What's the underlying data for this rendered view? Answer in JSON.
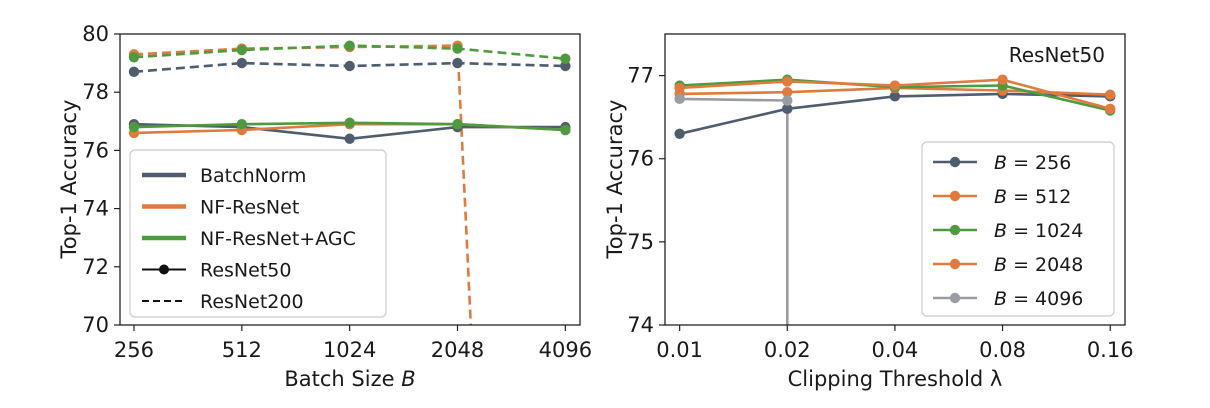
{
  "colors": {
    "batchnorm": "#4f5d6e",
    "nf_resnet": "#e07a3f",
    "nf_resnet_agc": "#4e9a3f",
    "b256": "#4f5d6e",
    "b512": "#e07a3f",
    "b1024": "#4e9a3f",
    "b2048": "#e07a3f",
    "b4096": "#9a9ca3"
  },
  "chart_data": [
    {
      "type": "line",
      "title": "",
      "xlabel": "Batch Size B",
      "ylabel": "Top-1 Accuracy",
      "x_scale": "log2",
      "categories": [
        "256",
        "512",
        "1024",
        "2048",
        "4096"
      ],
      "x": [
        256,
        512,
        1024,
        2048,
        4096
      ],
      "xlim": [
        234,
        4500
      ],
      "ylim": [
        70,
        80
      ],
      "yticks": [
        "70",
        "72",
        "74",
        "76",
        "78",
        "80"
      ],
      "yticks_values": [
        70,
        72,
        74,
        76,
        78,
        80
      ],
      "grid": false,
      "legend_position": "lower-left",
      "legend": [
        {
          "label": "BatchNorm",
          "style": "line",
          "color": "batchnorm"
        },
        {
          "label": "NF-ResNet",
          "style": "line",
          "color": "nf_resnet"
        },
        {
          "label": "NF-ResNet+AGC",
          "style": "line",
          "color": "nf_resnet_agc"
        },
        {
          "label": "ResNet50",
          "style": "solid-marker"
        },
        {
          "label": "ResNet200",
          "style": "dashed"
        }
      ],
      "series": [
        {
          "model": "BatchNorm",
          "depth": "ResNet50",
          "color": "batchnorm",
          "dashed": false,
          "x": [
            256,
            512,
            1024,
            2048,
            4096
          ],
          "values": [
            76.9,
            76.8,
            76.4,
            76.8,
            76.8
          ]
        },
        {
          "model": "NF-ResNet",
          "depth": "ResNet50",
          "color": "nf_resnet",
          "dashed": false,
          "x": [
            256,
            512,
            1024,
            2048,
            4096
          ],
          "values": [
            76.6,
            76.7,
            76.9,
            76.9,
            76.7
          ]
        },
        {
          "model": "NF-ResNet+AGC",
          "depth": "ResNet50",
          "color": "nf_resnet_agc",
          "dashed": false,
          "x": [
            256,
            512,
            1024,
            2048,
            4096
          ],
          "values": [
            76.8,
            76.9,
            76.95,
            76.9,
            76.7
          ]
        },
        {
          "model": "BatchNorm",
          "depth": "ResNet200",
          "color": "batchnorm",
          "dashed": true,
          "x": [
            256,
            512,
            1024,
            2048,
            4096
          ],
          "values": [
            78.7,
            79.0,
            78.9,
            79.0,
            78.9
          ]
        },
        {
          "model": "NF-ResNet",
          "depth": "ResNet200",
          "color": "nf_resnet",
          "dashed": true,
          "x": [
            256,
            512,
            1024,
            2048,
            2250
          ],
          "values": [
            79.3,
            79.5,
            79.55,
            79.6,
            69.0
          ]
        },
        {
          "model": "NF-ResNet+AGC",
          "depth": "ResNet200",
          "color": "nf_resnet_agc",
          "dashed": true,
          "x": [
            256,
            512,
            1024,
            2048,
            4096
          ],
          "values": [
            79.2,
            79.45,
            79.6,
            79.5,
            79.15
          ]
        }
      ]
    },
    {
      "type": "line",
      "title": "",
      "annotation": "ResNet50",
      "xlabel": "Clipping Threshold λ",
      "ylabel": "Top-1 Accuracy",
      "x_scale": "log2",
      "categories": [
        "0.01",
        "0.02",
        "0.04",
        "0.08",
        "0.16"
      ],
      "x": [
        0.01,
        0.02,
        0.04,
        0.08,
        0.16
      ],
      "xlim": [
        0.0091,
        0.176
      ],
      "ylim": [
        74,
        77.5
      ],
      "yticks": [
        "74",
        "75",
        "76",
        "77"
      ],
      "yticks_values": [
        74,
        75,
        76,
        77
      ],
      "grid": false,
      "legend_position": "lower-right",
      "series": [
        {
          "name": "B = 256",
          "name_var": "B",
          "name_value": "256",
          "color": "b256",
          "x": [
            0.01,
            0.02,
            0.04,
            0.08,
            0.16
          ],
          "values": [
            76.3,
            76.6,
            76.75,
            76.78,
            76.75
          ]
        },
        {
          "name": "B = 512",
          "name_var": "B",
          "name_value": "512",
          "color": "b512",
          "x": [
            0.01,
            0.02,
            0.04,
            0.08,
            0.16
          ],
          "values": [
            76.78,
            76.8,
            76.85,
            76.82,
            76.77
          ]
        },
        {
          "name": "B = 1024",
          "name_var": "B",
          "name_value": "1024",
          "color": "b1024",
          "x": [
            0.01,
            0.02,
            0.04,
            0.08,
            0.16
          ],
          "values": [
            76.88,
            76.95,
            76.86,
            76.88,
            76.58
          ]
        },
        {
          "name": "B = 2048",
          "name_var": "B",
          "name_value": "2048",
          "color": "b2048",
          "x": [
            0.01,
            0.02,
            0.04,
            0.08,
            0.16
          ],
          "values": [
            76.85,
            76.93,
            76.88,
            76.95,
            76.6
          ]
        },
        {
          "name": "B = 4096",
          "name_var": "B",
          "name_value": "4096",
          "color": "b4096",
          "x": [
            0.01,
            0.02,
            0.02
          ],
          "values": [
            76.72,
            76.7,
            73.5
          ]
        }
      ]
    }
  ]
}
